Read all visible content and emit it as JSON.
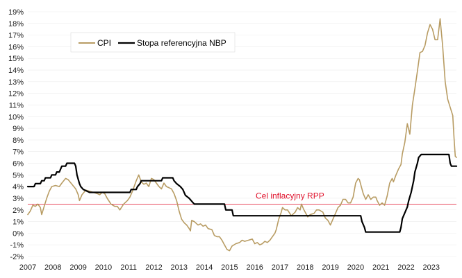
{
  "chart_data": {
    "type": "line",
    "title": "",
    "xlabel": "",
    "ylabel": "",
    "ylim": [
      -2,
      19
    ],
    "xlim": [
      2007.0,
      2023.95
    ],
    "x_ticks": [
      "2007",
      "2008",
      "2009",
      "2010",
      "2011",
      "2012",
      "2013",
      "2014",
      "2015",
      "2016",
      "2017",
      "2018",
      "2019",
      "2020",
      "2021",
      "2022",
      "2023"
    ],
    "y_ticks": [
      "-2%",
      "-1%",
      "0%",
      "1%",
      "2%",
      "3%",
      "4%",
      "5%",
      "6%",
      "7%",
      "8%",
      "9%",
      "10%",
      "11%",
      "12%",
      "13%",
      "14%",
      "15%",
      "16%",
      "17%",
      "18%",
      "19%"
    ],
    "legend": {
      "position": "top-left"
    },
    "reference_line": {
      "label": "Cel inflacyjny RPP",
      "value": 2.5,
      "color": "#e0112b"
    },
    "series": [
      {
        "name": "CPI",
        "color": "#b89c63",
        "points": [
          [
            2007.0,
            1.6
          ],
          [
            2007.1,
            1.9
          ],
          [
            2007.2,
            2.4
          ],
          [
            2007.3,
            2.3
          ],
          [
            2007.4,
            2.5
          ],
          [
            2007.5,
            2.2
          ],
          [
            2007.55,
            1.6
          ],
          [
            2007.65,
            2.3
          ],
          [
            2007.75,
            3.0
          ],
          [
            2007.85,
            3.6
          ],
          [
            2007.95,
            4.0
          ],
          [
            2008.1,
            4.1
          ],
          [
            2008.25,
            4.0
          ],
          [
            2008.35,
            4.3
          ],
          [
            2008.5,
            4.7
          ],
          [
            2008.6,
            4.6
          ],
          [
            2008.75,
            4.2
          ],
          [
            2008.9,
            3.8
          ],
          [
            2009.0,
            3.3
          ],
          [
            2009.05,
            2.8
          ],
          [
            2009.15,
            3.3
          ],
          [
            2009.3,
            3.7
          ],
          [
            2009.45,
            3.6
          ],
          [
            2009.6,
            3.5
          ],
          [
            2009.75,
            3.4
          ],
          [
            2009.85,
            3.3
          ],
          [
            2009.95,
            3.5
          ],
          [
            2010.05,
            3.4
          ],
          [
            2010.15,
            3.0
          ],
          [
            2010.3,
            2.5
          ],
          [
            2010.45,
            2.3
          ],
          [
            2010.55,
            2.3
          ],
          [
            2010.65,
            2.0
          ],
          [
            2010.8,
            2.5
          ],
          [
            2010.95,
            2.8
          ],
          [
            2011.05,
            3.1
          ],
          [
            2011.15,
            3.6
          ],
          [
            2011.3,
            4.5
          ],
          [
            2011.4,
            5.0
          ],
          [
            2011.5,
            4.4
          ],
          [
            2011.6,
            4.2
          ],
          [
            2011.7,
            4.3
          ],
          [
            2011.8,
            4.0
          ],
          [
            2011.9,
            4.7
          ],
          [
            2012.0,
            4.6
          ],
          [
            2012.1,
            4.3
          ],
          [
            2012.2,
            4.0
          ],
          [
            2012.3,
            3.8
          ],
          [
            2012.4,
            4.3
          ],
          [
            2012.5,
            4.0
          ],
          [
            2012.6,
            3.9
          ],
          [
            2012.7,
            3.8
          ],
          [
            2012.8,
            3.4
          ],
          [
            2012.9,
            2.8
          ],
          [
            2013.0,
            1.9
          ],
          [
            2013.1,
            1.2
          ],
          [
            2013.2,
            0.9
          ],
          [
            2013.3,
            0.7
          ],
          [
            2013.4,
            0.4
          ],
          [
            2013.45,
            0.2
          ],
          [
            2013.5,
            1.1
          ],
          [
            2013.6,
            1.0
          ],
          [
            2013.75,
            0.7
          ],
          [
            2013.85,
            0.8
          ],
          [
            2013.95,
            0.6
          ],
          [
            2014.05,
            0.7
          ],
          [
            2014.15,
            0.4
          ],
          [
            2014.3,
            0.3
          ],
          [
            2014.4,
            -0.2
          ],
          [
            2014.5,
            -0.3
          ],
          [
            2014.6,
            -0.3
          ],
          [
            2014.7,
            -0.6
          ],
          [
            2014.8,
            -1.0
          ],
          [
            2014.9,
            -1.4
          ],
          [
            2015.0,
            -1.5
          ],
          [
            2015.1,
            -1.1
          ],
          [
            2015.25,
            -0.9
          ],
          [
            2015.4,
            -0.8
          ],
          [
            2015.5,
            -0.6
          ],
          [
            2015.6,
            -0.7
          ],
          [
            2015.75,
            -0.6
          ],
          [
            2015.9,
            -0.5
          ],
          [
            2016.0,
            -0.9
          ],
          [
            2016.1,
            -0.8
          ],
          [
            2016.2,
            -1.0
          ],
          [
            2016.3,
            -0.9
          ],
          [
            2016.4,
            -0.7
          ],
          [
            2016.5,
            -0.8
          ],
          [
            2016.6,
            -0.6
          ],
          [
            2016.7,
            -0.3
          ],
          [
            2016.8,
            0.0
          ],
          [
            2016.85,
            0.3
          ],
          [
            2016.95,
            1.2
          ],
          [
            2017.05,
            1.8
          ],
          [
            2017.1,
            2.2
          ],
          [
            2017.2,
            2.0
          ],
          [
            2017.3,
            2.0
          ],
          [
            2017.45,
            1.5
          ],
          [
            2017.6,
            1.8
          ],
          [
            2017.7,
            2.2
          ],
          [
            2017.8,
            2.0
          ],
          [
            2017.85,
            2.5
          ],
          [
            2017.95,
            2.0
          ],
          [
            2018.1,
            1.4
          ],
          [
            2018.2,
            1.6
          ],
          [
            2018.35,
            1.7
          ],
          [
            2018.45,
            2.0
          ],
          [
            2018.55,
            2.0
          ],
          [
            2018.7,
            1.8
          ],
          [
            2018.8,
            1.3
          ],
          [
            2018.9,
            1.1
          ],
          [
            2019.0,
            0.7
          ],
          [
            2019.1,
            1.2
          ],
          [
            2019.2,
            1.7
          ],
          [
            2019.3,
            2.2
          ],
          [
            2019.4,
            2.4
          ],
          [
            2019.5,
            2.9
          ],
          [
            2019.6,
            2.9
          ],
          [
            2019.7,
            2.6
          ],
          [
            2019.8,
            2.6
          ],
          [
            2019.9,
            3.1
          ],
          [
            2020.0,
            4.3
          ],
          [
            2020.1,
            4.7
          ],
          [
            2020.15,
            4.6
          ],
          [
            2020.3,
            3.4
          ],
          [
            2020.4,
            2.9
          ],
          [
            2020.5,
            3.3
          ],
          [
            2020.6,
            2.9
          ],
          [
            2020.7,
            3.1
          ],
          [
            2020.8,
            3.1
          ],
          [
            2020.85,
            2.8
          ],
          [
            2020.95,
            2.4
          ],
          [
            2021.05,
            2.6
          ],
          [
            2021.15,
            2.4
          ],
          [
            2021.25,
            3.2
          ],
          [
            2021.35,
            4.3
          ],
          [
            2021.45,
            4.7
          ],
          [
            2021.5,
            4.4
          ],
          [
            2021.6,
            5.0
          ],
          [
            2021.7,
            5.5
          ],
          [
            2021.8,
            5.9
          ],
          [
            2021.85,
            6.8
          ],
          [
            2021.95,
            7.8
          ],
          [
            2022.05,
            9.4
          ],
          [
            2022.15,
            8.5
          ],
          [
            2022.25,
            11.0
          ],
          [
            2022.35,
            12.4
          ],
          [
            2022.45,
            13.9
          ],
          [
            2022.55,
            15.5
          ],
          [
            2022.65,
            15.6
          ],
          [
            2022.75,
            16.1
          ],
          [
            2022.85,
            17.2
          ],
          [
            2022.95,
            17.9
          ],
          [
            2023.05,
            17.5
          ],
          [
            2023.15,
            16.6
          ],
          [
            2023.25,
            16.6
          ],
          [
            2023.35,
            18.4
          ],
          [
            2023.45,
            16.1
          ],
          [
            2023.55,
            13.0
          ],
          [
            2023.65,
            11.5
          ],
          [
            2023.75,
            10.8
          ],
          [
            2023.85,
            10.1
          ],
          [
            2023.9,
            8.2
          ],
          [
            2023.95,
            6.6
          ],
          [
            2024.0,
            6.5
          ]
        ]
      },
      {
        "name": "Stopa referencyjna NBP",
        "color": "#000000",
        "points": [
          [
            2007.0,
            4.0
          ],
          [
            2007.25,
            4.0
          ],
          [
            2007.3,
            4.25
          ],
          [
            2007.5,
            4.25
          ],
          [
            2007.55,
            4.5
          ],
          [
            2007.65,
            4.5
          ],
          [
            2007.7,
            4.75
          ],
          [
            2007.9,
            4.75
          ],
          [
            2007.95,
            5.0
          ],
          [
            2008.1,
            5.0
          ],
          [
            2008.15,
            5.25
          ],
          [
            2008.25,
            5.25
          ],
          [
            2008.3,
            5.5
          ],
          [
            2008.35,
            5.75
          ],
          [
            2008.5,
            5.75
          ],
          [
            2008.55,
            6.0
          ],
          [
            2008.85,
            6.0
          ],
          [
            2008.9,
            5.75
          ],
          [
            2008.95,
            5.0
          ],
          [
            2009.05,
            4.25
          ],
          [
            2009.1,
            4.0
          ],
          [
            2009.2,
            3.75
          ],
          [
            2009.45,
            3.5
          ],
          [
            2011.05,
            3.5
          ],
          [
            2011.1,
            3.75
          ],
          [
            2011.3,
            3.75
          ],
          [
            2011.35,
            4.0
          ],
          [
            2011.45,
            4.25
          ],
          [
            2011.5,
            4.5
          ],
          [
            2012.3,
            4.5
          ],
          [
            2012.35,
            4.75
          ],
          [
            2012.75,
            4.75
          ],
          [
            2012.8,
            4.5
          ],
          [
            2012.9,
            4.25
          ],
          [
            2013.05,
            4.0
          ],
          [
            2013.15,
            3.75
          ],
          [
            2013.25,
            3.25
          ],
          [
            2013.4,
            3.0
          ],
          [
            2013.5,
            2.75
          ],
          [
            2013.6,
            2.5
          ],
          [
            2014.8,
            2.5
          ],
          [
            2014.85,
            2.0
          ],
          [
            2015.1,
            2.0
          ],
          [
            2015.15,
            1.5
          ],
          [
            2020.2,
            1.5
          ],
          [
            2020.25,
            1.0
          ],
          [
            2020.35,
            0.5
          ],
          [
            2020.4,
            0.1
          ],
          [
            2021.75,
            0.1
          ],
          [
            2021.8,
            0.5
          ],
          [
            2021.85,
            1.25
          ],
          [
            2021.95,
            1.75
          ],
          [
            2022.05,
            2.25
          ],
          [
            2022.1,
            2.75
          ],
          [
            2022.2,
            3.5
          ],
          [
            2022.3,
            4.5
          ],
          [
            2022.35,
            5.25
          ],
          [
            2022.45,
            6.0
          ],
          [
            2022.5,
            6.5
          ],
          [
            2022.6,
            6.75
          ],
          [
            2023.7,
            6.75
          ],
          [
            2023.75,
            6.0
          ],
          [
            2023.8,
            5.75
          ],
          [
            2024.0,
            5.75
          ]
        ]
      }
    ]
  }
}
